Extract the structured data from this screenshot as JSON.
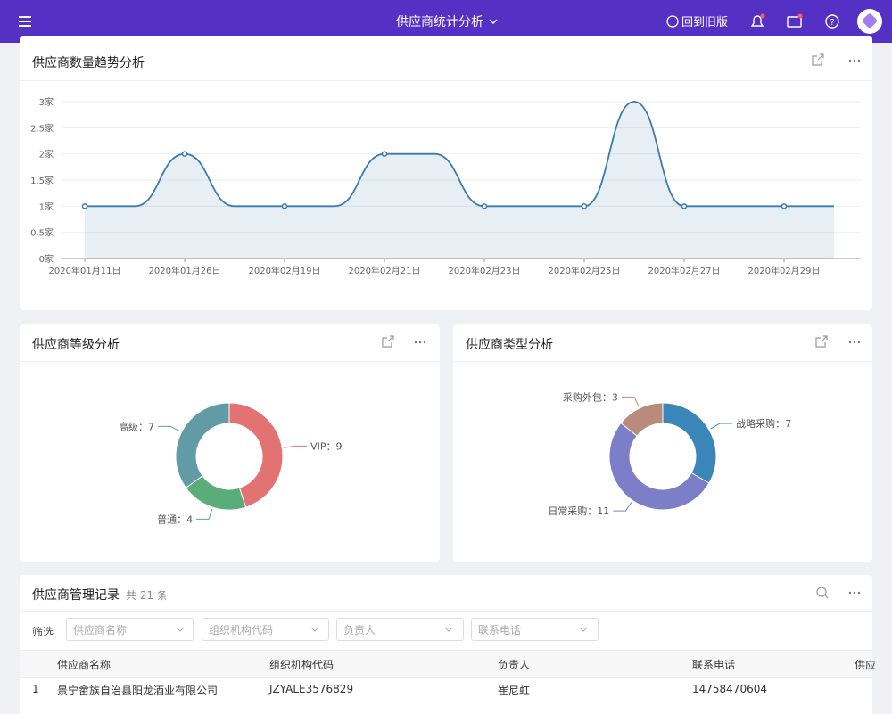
{
  "header": {
    "title": "供应商统计分析",
    "back_label": "回到旧版"
  },
  "chart_data": [
    {
      "type": "line",
      "title": "供应商数量趋势分析",
      "categories": [
        "2020年01月11日",
        null,
        "2020年01月26日",
        null,
        "2020年02月19日",
        null,
        "2020年02月21日",
        null,
        "2020年02月23日",
        null,
        "2020年02月25日",
        null,
        "2020年02月27日",
        null,
        "2020年02月29日",
        null
      ],
      "values": [
        1,
        1,
        2,
        1,
        1,
        1,
        2,
        2,
        1,
        1,
        1,
        3,
        1,
        1,
        1,
        1
      ],
      "color": "#3a7bb0",
      "ylim": [
        0,
        3
      ],
      "yticks": [
        {
          "value": 0,
          "label": "0家"
        },
        {
          "value": 0.5,
          "label": "0.5家"
        },
        {
          "value": 1,
          "label": "1家"
        },
        {
          "value": 1.5,
          "label": "1.5家"
        },
        {
          "value": 2,
          "label": "2家"
        },
        {
          "value": 2.5,
          "label": "2.5家"
        },
        {
          "value": 3,
          "label": "3家"
        }
      ],
      "grid": true
    },
    {
      "type": "pie",
      "title": "供应商等级分析",
      "categories": [
        "VIP",
        "普通",
        "高级"
      ],
      "values": [
        9,
        4,
        7
      ],
      "value_labels": [
        "VIP：9",
        "普通：4",
        "高级：7"
      ],
      "colors": [
        "#e37372",
        "#5aac78",
        "#609ba6"
      ]
    },
    {
      "type": "pie",
      "title": "供应商类型分析",
      "categories": [
        "战略采购",
        "日常采购",
        "采购外包"
      ],
      "values": [
        7,
        11,
        3
      ],
      "value_labels": [
        "战略采购：7",
        "日常采购：11",
        "采购外包：3"
      ],
      "colors": [
        "#3b86b8",
        "#7c7fc8",
        "#b98b7b"
      ]
    }
  ],
  "table": {
    "title": "供应商管理记录",
    "count": "共 21 条",
    "filter_label": "筛选",
    "filters": [
      "供应商名称",
      "组织机构代码",
      "负责人",
      "联系电话"
    ],
    "columns": [
      "供应商名称",
      "组织机构代码",
      "负责人",
      "联系电话",
      "供应"
    ],
    "rows": [
      [
        "1",
        "景宁畲族自治县阳龙酒业有限公司",
        "JZYALE3576829",
        "崔尼虹",
        "14758470604"
      ]
    ]
  }
}
